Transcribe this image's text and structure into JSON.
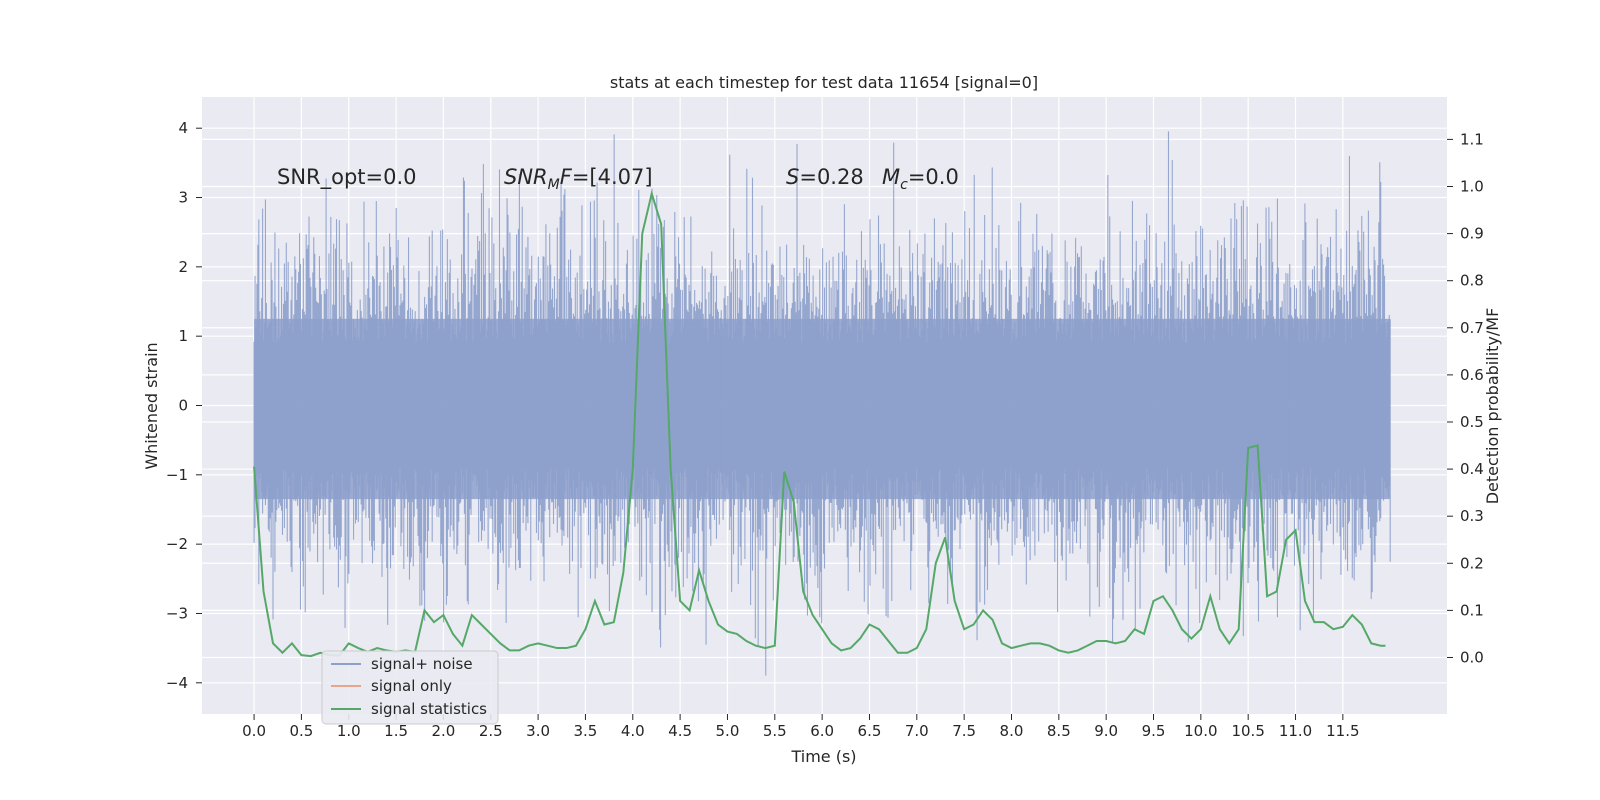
{
  "chart_data": {
    "type": "line",
    "title": "stats at each timestep for test data 11654 [signal=0]",
    "xlabel": "Time (s)",
    "ylabel": "Whitened strain",
    "ylabel_right": "Detection probability/MF",
    "xlim": [
      -0.55,
      12.6
    ],
    "ylim": [
      -4.45,
      4.45
    ],
    "ylim_right": [
      -0.12,
      1.19
    ],
    "x_ticks": [
      0.0,
      0.5,
      1.0,
      1.5,
      2.0,
      2.5,
      3.0,
      3.5,
      4.0,
      4.5,
      5.0,
      5.5,
      6.0,
      6.5,
      7.0,
      7.5,
      8.0,
      8.5,
      9.0,
      9.5,
      10.0,
      10.5,
      11.0,
      11.5
    ],
    "x_tick_labels": [
      "0.0",
      "0.5",
      "1.0",
      "1.5",
      "2.0",
      "2.5",
      "3.0",
      "3.5",
      "4.0",
      "4.5",
      "5.0",
      "5.5",
      "6.0",
      "6.5",
      "7.0",
      "7.5",
      "8.0",
      "8.5",
      "9.0",
      "9.5",
      "10.0",
      "10.5",
      "11.0",
      "11.5"
    ],
    "y_ticks": [
      -4,
      -3,
      -2,
      -1,
      0,
      1,
      2,
      3,
      4
    ],
    "y_tick_labels": [
      "−4",
      "−3",
      "−2",
      "−1",
      "0",
      "1",
      "2",
      "3",
      "4"
    ],
    "y_ticks_right": [
      0.0,
      0.1,
      0.2,
      0.3,
      0.4,
      0.5,
      0.6,
      0.7,
      0.8,
      0.9,
      1.0,
      1.1
    ],
    "y_tick_labels_right": [
      "0.0",
      "0.1",
      "0.2",
      "0.3",
      "0.4",
      "0.5",
      "0.6",
      "0.7",
      "0.8",
      "0.9",
      "1.0",
      "1.1"
    ],
    "grid": true,
    "legend_placement": "lower-left",
    "annotations": {
      "snr_opt": "SNR_opt=0.0",
      "snr_mf_main": "SNR",
      "snr_mf_sub": "M",
      "snr_mf_rest": "F",
      "snr_mf_value": "=[4.07]",
      "s_symbol": "S",
      "s_value": "=0.28",
      "mc_main": "M",
      "mc_sub": "c",
      "mc_value": "=0.0"
    },
    "series": [
      {
        "name": "signal+ noise",
        "color": "#8da0cb",
        "axis": "left",
        "x_range": [
          0.0,
          12.0
        ],
        "y_range": [
          -4.1,
          4.1
        ],
        "envelope_note": ""
      },
      {
        "name": "signal only",
        "color": "#e8a58a",
        "axis": "left",
        "x": [],
        "y": []
      },
      {
        "name": "signal statistics",
        "color": "#55a868",
        "axis": "right",
        "x": [
          0.0,
          0.1,
          0.2,
          0.3,
          0.4,
          0.5,
          0.6,
          0.7,
          0.8,
          0.9,
          1.0,
          1.1,
          1.2,
          1.3,
          1.4,
          1.5,
          1.6,
          1.7,
          1.8,
          1.9,
          2.0,
          2.1,
          2.2,
          2.3,
          2.4,
          2.5,
          2.6,
          2.7,
          2.8,
          2.9,
          3.0,
          3.1,
          3.2,
          3.3,
          3.4,
          3.5,
          3.6,
          3.7,
          3.8,
          3.9,
          4.0,
          4.1,
          4.2,
          4.3,
          4.4,
          4.5,
          4.6,
          4.7,
          4.8,
          4.9,
          5.0,
          5.1,
          5.2,
          5.3,
          5.4,
          5.5,
          5.6,
          5.7,
          5.8,
          5.9,
          6.0,
          6.1,
          6.2,
          6.3,
          6.4,
          6.5,
          6.6,
          6.7,
          6.8,
          6.9,
          7.0,
          7.1,
          7.2,
          7.3,
          7.4,
          7.5,
          7.6,
          7.7,
          7.8,
          7.9,
          8.0,
          8.1,
          8.2,
          8.3,
          8.4,
          8.5,
          8.6,
          8.7,
          8.8,
          8.9,
          9.0,
          9.1,
          9.2,
          9.3,
          9.4,
          9.5,
          9.6,
          9.7,
          9.8,
          9.9,
          10.0,
          10.1,
          10.2,
          10.3,
          10.4,
          10.5,
          10.6,
          10.7,
          10.8,
          10.9,
          11.0,
          11.1,
          11.2,
          11.3,
          11.4,
          11.5,
          11.6,
          11.7,
          11.8,
          11.9,
          11.95
        ],
        "y": [
          0.405,
          0.14,
          0.03,
          0.01,
          0.03,
          0.005,
          0.003,
          0.01,
          0.005,
          0.004,
          0.03,
          0.02,
          0.012,
          0.02,
          0.015,
          0.012,
          0.015,
          0.012,
          0.1,
          0.075,
          0.09,
          0.05,
          0.025,
          0.09,
          0.07,
          0.05,
          0.03,
          0.015,
          0.015,
          0.025,
          0.03,
          0.025,
          0.02,
          0.02,
          0.025,
          0.06,
          0.12,
          0.07,
          0.075,
          0.18,
          0.4,
          0.9,
          0.985,
          0.92,
          0.4,
          0.12,
          0.1,
          0.185,
          0.12,
          0.07,
          0.055,
          0.05,
          0.035,
          0.025,
          0.02,
          0.025,
          0.395,
          0.33,
          0.14,
          0.09,
          0.06,
          0.03,
          0.015,
          0.02,
          0.04,
          0.07,
          0.06,
          0.035,
          0.01,
          0.01,
          0.02,
          0.06,
          0.2,
          0.255,
          0.12,
          0.06,
          0.07,
          0.1,
          0.08,
          0.03,
          0.02,
          0.025,
          0.03,
          0.03,
          0.025,
          0.015,
          0.01,
          0.015,
          0.025,
          0.035,
          0.035,
          0.03,
          0.035,
          0.06,
          0.05,
          0.12,
          0.13,
          0.1,
          0.06,
          0.04,
          0.06,
          0.13,
          0.06,
          0.03,
          0.06,
          0.445,
          0.45,
          0.13,
          0.14,
          0.25,
          0.27,
          0.12,
          0.075,
          0.075,
          0.06,
          0.065,
          0.09,
          0.07,
          0.03,
          0.025,
          0.025
        ]
      }
    ]
  }
}
